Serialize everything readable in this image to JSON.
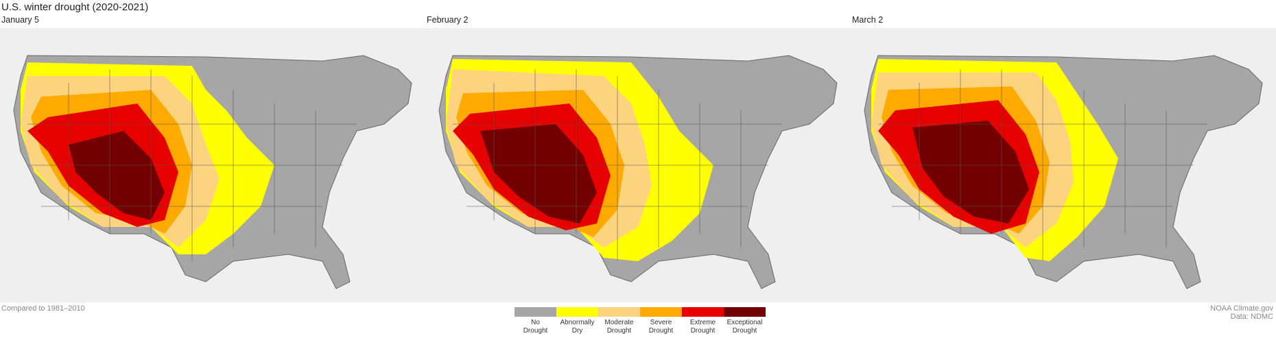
{
  "title": "U.S. winter drought (2020-2021)",
  "panels": [
    {
      "label": "January 5"
    },
    {
      "label": "February 2"
    },
    {
      "label": "March 2"
    }
  ],
  "legend": [
    {
      "line1": "No",
      "line2": "Drought",
      "color": "#a6a6a6"
    },
    {
      "line1": "Abnormally",
      "line2": "Dry",
      "color": "#ffff00"
    },
    {
      "line1": "Moderate",
      "line2": "Drought",
      "color": "#fcd37f"
    },
    {
      "line1": "Severe",
      "line2": "Drought",
      "color": "#ffaa00"
    },
    {
      "line1": "Extreme",
      "line2": "Drought",
      "color": "#e60000"
    },
    {
      "line1": "Exceptional",
      "line2": "Drought",
      "color": "#730000"
    }
  ],
  "footer": {
    "left": "Compared to 1981–2010",
    "credit": "NOAA Climate.gov",
    "data_source": "Data: NDMC"
  }
}
